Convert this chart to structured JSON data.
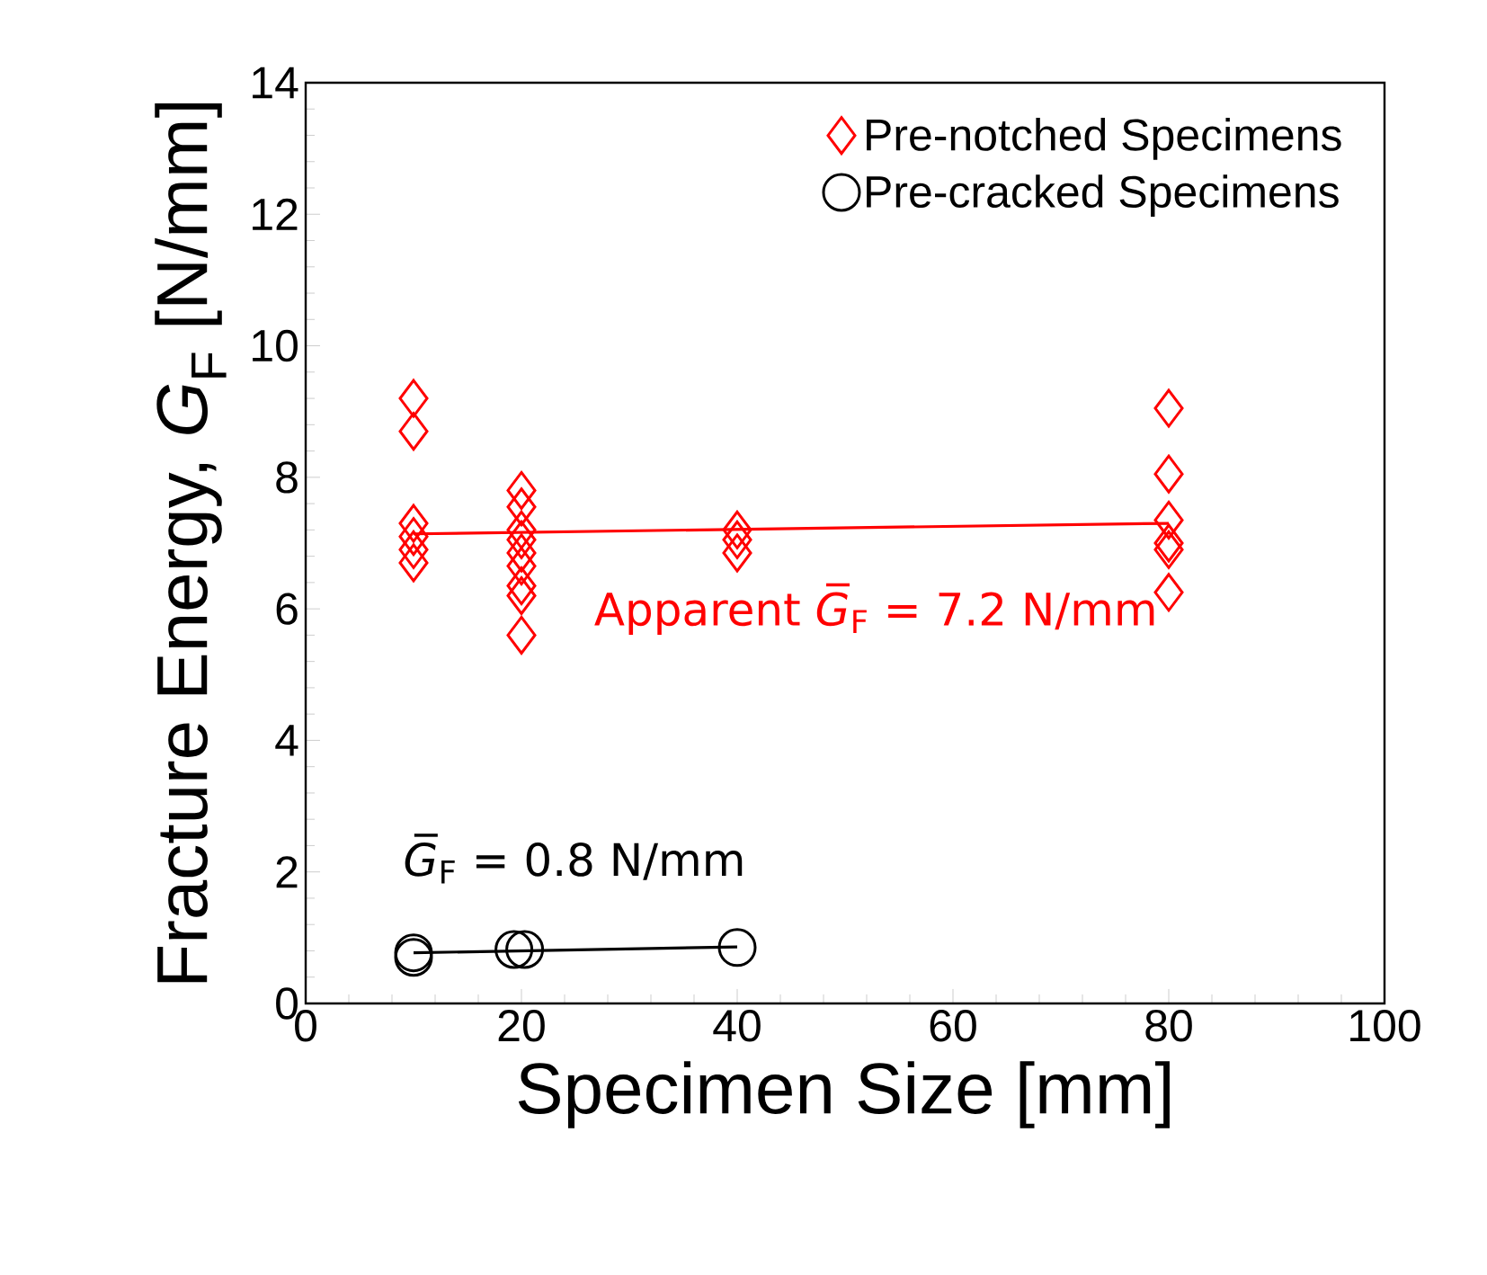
{
  "chart_data": {
    "type": "scatter",
    "xlabel": "Specimen Size [mm]",
    "ylabel": "Fracture Energy, *G*$_{F}$ [N/mm]",
    "xlim": [
      0,
      100
    ],
    "xticks": [
      0,
      20,
      40,
      60,
      80,
      100
    ],
    "ylim": [
      0,
      14
    ],
    "yticks": [
      0,
      2,
      4,
      6,
      8,
      10,
      12,
      14
    ],
    "grid": false,
    "legend": "top right",
    "series": [
      {
        "name": "Pre-notched Specimens",
        "color": "#ff0000",
        "marker": "diamond",
        "x": [
          10,
          10,
          10,
          10,
          10,
          10,
          20,
          20,
          20,
          20,
          20,
          20,
          20,
          20,
          20,
          40,
          40,
          40,
          80,
          80,
          80,
          80,
          80,
          80
        ],
        "values": [
          9.2,
          8.7,
          7.3,
          7.1,
          6.9,
          6.7,
          7.8,
          7.55,
          7.2,
          7.05,
          6.85,
          6.65,
          6.35,
          6.2,
          5.6,
          7.2,
          7.05,
          6.85,
          9.05,
          8.05,
          7.35,
          7.0,
          6.9,
          6.25
        ]
      },
      {
        "name": "Pre-cracked Specimens",
        "color": "#000000",
        "marker": "circle",
        "x": [
          10,
          10,
          19.3,
          20.3,
          40
        ],
        "values": [
          0.77,
          0.7,
          0.82,
          0.82,
          0.85
        ]
      },
      {
        "type": "line",
        "color": "#ff0000",
        "marker": "none",
        "x": [
          10,
          80
        ],
        "values": [
          7.14,
          7.3
        ]
      },
      {
        "type": "line",
        "color": "#000000",
        "marker": "none",
        "x": [
          10,
          40
        ],
        "values": [
          0.77,
          0.86
        ]
      }
    ],
    "annotations": [
      "Apparent *G̅*$_{F}$ = 7.2 N/mm",
      "*G̅*$_{F}$ = 0.8 N/mm"
    ]
  }
}
